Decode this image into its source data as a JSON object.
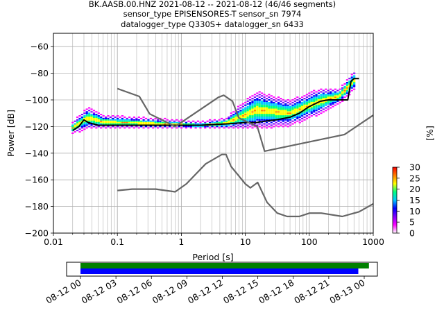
{
  "header": {
    "title_line1": "BK.AASB.00.HNZ   2021-08-12 -- 2021-08-12  (46/46 segments)",
    "title_line2": "sensor_type EPISENSORES-T sensor_sn 7974",
    "title_line3": "datalogger_type Q330S+ datalogger_sn 6433"
  },
  "chart_data": {
    "type": "line",
    "xlabel": "Period [s]",
    "ylabel": "Power [dB]",
    "xscale": "log",
    "xlim": [
      0.01,
      1000
    ],
    "ylim": [
      -200,
      -50
    ],
    "x_tick_labels": [
      "0.01",
      "0.1",
      "1",
      "10",
      "100",
      "1000"
    ],
    "y_tick_labels": [
      "−200",
      "−180",
      "−160",
      "−140",
      "−120",
      "−100",
      "−80",
      "−60"
    ],
    "grid": true,
    "colorbar": {
      "label": "[%]",
      "ticks": [
        "0",
        "5",
        "10",
        "15",
        "20",
        "25",
        "30"
      ],
      "range": [
        0,
        30
      ],
      "colors": [
        "#ffffff",
        "#ff00ff",
        "#8000ff",
        "#0000ff",
        "#00c8ff",
        "#00ff80",
        "#ffff00",
        "#ff8000",
        "#ff0000"
      ]
    },
    "series": [
      {
        "role": "mode",
        "color": "#000000",
        "x": [
          0.02,
          0.025,
          0.03,
          0.035,
          0.05,
          0.08,
          0.2,
          0.5,
          1,
          2,
          5,
          10,
          15,
          20,
          30,
          50,
          70,
          100,
          150,
          200,
          300,
          400,
          450,
          500,
          600
        ],
        "y": [
          -123,
          -120,
          -115,
          -117,
          -119,
          -119,
          -119,
          -119,
          -119,
          -119,
          -118,
          -117,
          -117,
          -116,
          -115,
          -113,
          -110,
          -105,
          -101,
          -100,
          -100,
          -100,
          -86,
          -84,
          -84
        ]
      },
      {
        "role": "new_low_noise_model",
        "color": "#666666",
        "x": [
          0.1,
          0.17,
          0.4,
          0.8,
          1.2,
          2.4,
          4.3,
          5,
          6,
          10,
          12,
          15.6,
          21.9,
          31.6,
          45,
          70,
          101,
          154,
          328,
          600,
          1000
        ],
        "y": [
          -168,
          -167,
          -167,
          -169,
          -163,
          -148,
          -141,
          -141,
          -150,
          -163,
          -166,
          -162,
          -177,
          -185,
          -187.5,
          -187.5,
          -185,
          -185,
          -187.5,
          -184,
          -178
        ]
      },
      {
        "role": "new_high_noise_model",
        "color": "#666666",
        "x": [
          0.1,
          0.22,
          0.32,
          0.8,
          3.8,
          4.6,
          6.3,
          7.9,
          15.4,
          20,
          354.8,
          1000
        ],
        "y": [
          -91.5,
          -97.4,
          -110.5,
          -120,
          -98,
          -96.5,
          -101,
          -113.5,
          -120,
          -138.5,
          -126,
          -111.5
        ]
      }
    ],
    "histogram_density": [
      {
        "period": 0.02,
        "power_min": -125,
        "power_max": -117
      },
      {
        "period": 0.035,
        "power_min": -121,
        "power_max": -106
      },
      {
        "period": 0.06,
        "power_min": -121,
        "power_max": -112
      },
      {
        "period": 0.3,
        "power_min": -121,
        "power_max": -114
      },
      {
        "period": 2,
        "power_min": -121,
        "power_max": -117
      },
      {
        "period": 5,
        "power_min": -121,
        "power_max": -114
      },
      {
        "period": 15,
        "power_min": -121,
        "power_max": -94
      },
      {
        "period": 50,
        "power_min": -119,
        "power_max": -101
      },
      {
        "period": 150,
        "power_min": -110,
        "power_max": -92
      },
      {
        "period": 300,
        "power_min": -102,
        "power_max": -92
      },
      {
        "period": 550,
        "power_min": -90,
        "power_max": -77
      }
    ],
    "availability": {
      "x_tick_labels": [
        "08-12 00",
        "08-12 03",
        "08-12 06",
        "08-12 09",
        "08-12 12",
        "08-12 15",
        "08-12 18",
        "08-12 21",
        "08-13 00"
      ],
      "bars": [
        {
          "name": "data",
          "color": "#008000",
          "start_hour": 0,
          "end_hour": 24.4
        },
        {
          "name": "psd",
          "color": "#0000ff",
          "start_hour": 0,
          "end_hour": 23.5
        }
      ]
    }
  }
}
